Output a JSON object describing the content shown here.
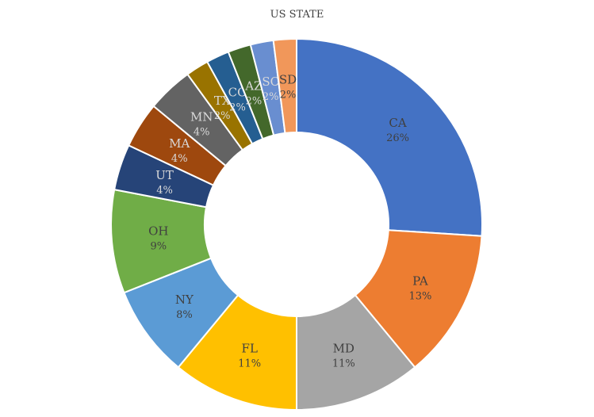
{
  "chart_data": {
    "type": "pie",
    "style": "donut",
    "title": "US STATE",
    "slices": [
      {
        "label": "CA",
        "value": 26,
        "percent_label": "26%",
        "color": "#4472c4",
        "label_color": "#404040"
      },
      {
        "label": "PA",
        "value": 13,
        "percent_label": "13%",
        "color": "#ed7d31",
        "label_color": "#404040"
      },
      {
        "label": "MD",
        "value": 11,
        "percent_label": "11%",
        "color": "#a5a5a5",
        "label_color": "#404040"
      },
      {
        "label": "FL",
        "value": 11,
        "percent_label": "11%",
        "color": "#ffc000",
        "label_color": "#404040"
      },
      {
        "label": "NY",
        "value": 8,
        "percent_label": "8%",
        "color": "#5b9bd5",
        "label_color": "#404040"
      },
      {
        "label": "OH",
        "value": 9,
        "percent_label": "9%",
        "color": "#70ad47",
        "label_color": "#404040"
      },
      {
        "label": "UT",
        "value": 4,
        "percent_label": "4%",
        "color": "#264478",
        "label_color": "#d9d9d9"
      },
      {
        "label": "MA",
        "value": 4,
        "percent_label": "4%",
        "color": "#9e480e",
        "label_color": "#d9d9d9"
      },
      {
        "label": "MN",
        "value": 4,
        "percent_label": "4%",
        "color": "#636363",
        "label_color": "#d9d9d9"
      },
      {
        "label": "TX",
        "value": 2,
        "percent_label": "2%",
        "color": "#997300",
        "label_color": "#d9d9d9"
      },
      {
        "label": "CO",
        "value": 2,
        "percent_label": "2%",
        "color": "#255e91",
        "label_color": "#d9d9d9"
      },
      {
        "label": "AZ",
        "value": 2,
        "percent_label": "2%",
        "color": "#43682b",
        "label_color": "#d9d9d9"
      },
      {
        "label": "SC",
        "value": 2,
        "percent_label": "2%",
        "color": "#698ed0",
        "label_color": "#d9d9d9"
      },
      {
        "label": "SD",
        "value": 2,
        "percent_label": "2%",
        "color": "#f1975a",
        "label_color": "#404040"
      }
    ]
  }
}
